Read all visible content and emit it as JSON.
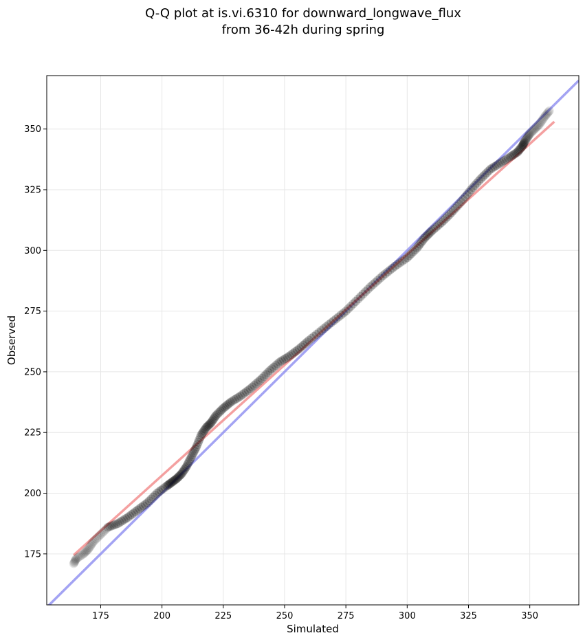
{
  "chart_data": {
    "type": "scatter",
    "title_lines": [
      "Q-Q plot at is.vi.6310 for downward_longwave_flux",
      "from 36-42h during spring"
    ],
    "xlabel": "Simulated",
    "ylabel": "Observed",
    "xlim": [
      153,
      370
    ],
    "ylim": [
      154,
      372
    ],
    "xticks": [
      175,
      200,
      225,
      250,
      275,
      300,
      325,
      350
    ],
    "yticks": [
      175,
      200,
      225,
      250,
      275,
      300,
      325,
      350
    ],
    "grid": true,
    "colors": {
      "points": "#000000",
      "fit_line": "#f08080",
      "identity_line": "#8c8cf0"
    },
    "fit_line": {
      "x": [
        164,
        360
      ],
      "y": [
        174.5,
        353
      ]
    },
    "identity_line": {
      "x": [
        153,
        370
      ],
      "y": [
        153,
        370
      ]
    },
    "quantiles": {
      "x": [
        164,
        165,
        168,
        170,
        172,
        175,
        178,
        182,
        186,
        190,
        194,
        198,
        202,
        204,
        206,
        208,
        210,
        212,
        214,
        216,
        218,
        220,
        222,
        225,
        228,
        232,
        236,
        240,
        244,
        248,
        252,
        256,
        260,
        265,
        270,
        275,
        280,
        285,
        290,
        295,
        300,
        304,
        307,
        310,
        314,
        318,
        322,
        326,
        330,
        334,
        338,
        342,
        345,
        347,
        348,
        349,
        350,
        352,
        354,
        356,
        358
      ],
      "y": [
        171,
        173,
        175,
        177,
        180,
        183,
        186,
        187.5,
        190,
        193,
        196,
        200,
        203,
        204.5,
        206,
        208,
        211,
        215,
        219,
        224,
        227,
        229,
        232,
        235,
        237.5,
        240,
        243,
        246.5,
        250.5,
        254,
        256.5,
        259.5,
        263,
        267,
        271,
        275,
        280,
        285,
        289.5,
        293.5,
        297,
        301,
        305,
        308,
        311.5,
        315.5,
        320,
        325,
        329.5,
        333.5,
        336,
        338.5,
        340.5,
        343,
        345,
        346.5,
        348,
        350,
        352,
        355,
        357.5
      ]
    }
  }
}
